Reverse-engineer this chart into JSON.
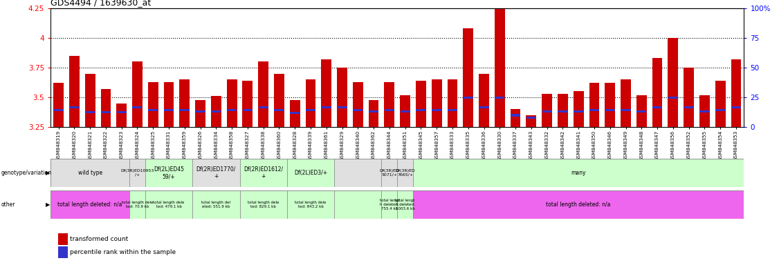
{
  "title": "GDS4494 / 1639630_at",
  "samples": [
    "GSM848319",
    "GSM848320",
    "GSM848321",
    "GSM848322",
    "GSM848323",
    "GSM848324",
    "GSM848325",
    "GSM848331",
    "GSM848359",
    "GSM848326",
    "GSM848334",
    "GSM848358",
    "GSM848327",
    "GSM848338",
    "GSM848360",
    "GSM848328",
    "GSM848339",
    "GSM848361",
    "GSM848329",
    "GSM848340",
    "GSM848362",
    "GSM848344",
    "GSM848351",
    "GSM848345",
    "GSM848357",
    "GSM848333",
    "GSM848335",
    "GSM848336",
    "GSM848330",
    "GSM848337",
    "GSM848343",
    "GSM848332",
    "GSM848342",
    "GSM848341",
    "GSM848350",
    "GSM848346",
    "GSM848349",
    "GSM848348",
    "GSM848347",
    "GSM848356",
    "GSM848352",
    "GSM848355",
    "GSM848354",
    "GSM848353"
  ],
  "bar_values": [
    3.62,
    3.85,
    3.7,
    3.57,
    3.45,
    3.8,
    3.63,
    3.63,
    3.65,
    3.48,
    3.51,
    3.65,
    3.64,
    3.8,
    3.7,
    3.48,
    3.65,
    3.82,
    3.75,
    3.63,
    3.48,
    3.63,
    3.52,
    3.64,
    3.65,
    3.65,
    4.08,
    3.7,
    4.27,
    3.4,
    3.35,
    3.53,
    3.53,
    3.55,
    3.62,
    3.62,
    3.65,
    3.52,
    3.83,
    4.0,
    3.75,
    3.52,
    3.64,
    3.82
  ],
  "percentile_values": [
    3.395,
    3.415,
    3.375,
    3.375,
    3.375,
    3.415,
    3.395,
    3.395,
    3.395,
    3.38,
    3.38,
    3.395,
    3.395,
    3.415,
    3.395,
    3.37,
    3.395,
    3.415,
    3.415,
    3.395,
    3.38,
    3.395,
    3.38,
    3.395,
    3.395,
    3.395,
    3.5,
    3.415,
    3.5,
    3.35,
    3.33,
    3.38,
    3.38,
    3.38,
    3.395,
    3.395,
    3.395,
    3.38,
    3.415,
    3.5,
    3.415,
    3.38,
    3.395,
    3.415
  ],
  "ymin": 3.25,
  "ymax": 4.25,
  "yticks": [
    3.25,
    3.5,
    3.75,
    4.0,
    4.25
  ],
  "ytick_labels": [
    "3.25",
    "3.5",
    "3.75",
    "4",
    "4.25"
  ],
  "right_yticks": [
    0,
    25,
    50,
    75,
    100
  ],
  "right_ytick_labels": [
    "0",
    "25",
    "50",
    "75",
    "100%"
  ],
  "bar_color": "#cc0000",
  "percentile_color": "#3333cc",
  "dotted_line_values": [
    3.5,
    3.75,
    4.0
  ],
  "groups_geno": [
    [
      0,
      5,
      "wild type",
      "#e0e0e0"
    ],
    [
      5,
      6,
      "Df(3R)ED10953\n/+",
      "#e0e0e0"
    ],
    [
      6,
      9,
      "Df(2L)ED45\n59/+",
      "#ccffcc"
    ],
    [
      9,
      12,
      "Df(2R)ED1770/\n+",
      "#e0e0e0"
    ],
    [
      12,
      15,
      "Df(2R)ED1612/\n+",
      "#ccffcc"
    ],
    [
      15,
      18,
      "Df(2L)ED3/+",
      "#ccffcc"
    ],
    [
      18,
      21,
      "",
      "#e0e0e0"
    ],
    [
      21,
      22,
      "Df(3R)ED\n5071/+",
      "#e0e0e0"
    ],
    [
      22,
      23,
      "Df(3R)ED\n7665/+",
      "#e0e0e0"
    ],
    [
      23,
      44,
      "many",
      "#ccffcc"
    ]
  ],
  "groups_other": [
    [
      0,
      5,
      "total length deleted: n/a",
      "#ee66ee"
    ],
    [
      5,
      6,
      "total length dele\nted: 70.9 kb",
      "#ccffcc"
    ],
    [
      6,
      9,
      "total length dele\nted: 479.1 kb",
      "#ccffcc"
    ],
    [
      9,
      12,
      "total length del\neted: 551.9 kb",
      "#ccffcc"
    ],
    [
      12,
      15,
      "total length dele\nted: 829.1 kb",
      "#ccffcc"
    ],
    [
      15,
      18,
      "total length dele\nted: 843.2 kb",
      "#ccffcc"
    ],
    [
      18,
      21,
      "",
      "#ccffcc"
    ],
    [
      21,
      22,
      "total lengt\nh deleted:\n755.4 kb",
      "#ccffcc"
    ],
    [
      22,
      23,
      "total lengt\nh deleted:\n1003.6 kb",
      "#ccffcc"
    ],
    [
      23,
      44,
      "total length deleted: n/a",
      "#ee66ee"
    ]
  ]
}
